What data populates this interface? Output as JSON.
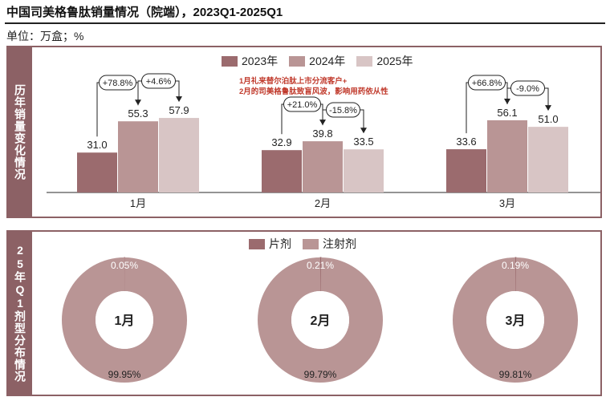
{
  "title": "中国司美格鲁肽销量情况（院端），2023Q1-2025Q1",
  "unit": "单位：万盒；%",
  "colors": {
    "c2023": "#9b6b6e",
    "c2024": "#b99595",
    "c2025": "#d8c5c5",
    "frame": "#8c6165",
    "note": "#c0392b",
    "donut_main": "#b99595",
    "donut_minor": "#9b6b6e"
  },
  "top_panel": {
    "side_label": "历年销量变化情况",
    "note_line1": "1月礼来替尔泊肽上市分流客户+",
    "note_line2": "2月的司美格鲁肽致盲风波，影响用药依从性"
  },
  "bottom_panel": {
    "side_label": "25年Q1剂型分布情况"
  },
  "chart_data": [
    {
      "type": "bar",
      "categories": [
        "1月",
        "2月",
        "3月"
      ],
      "series": [
        {
          "name": "2023年",
          "values": [
            31.0,
            32.9,
            33.6
          ],
          "color": "#9b6b6e"
        },
        {
          "name": "2024年",
          "values": [
            55.3,
            39.8,
            56.1
          ],
          "color": "#b99595"
        },
        {
          "name": "2025年",
          "values": [
            57.9,
            33.5,
            51.0
          ],
          "color": "#d8c5c5"
        }
      ],
      "value_labels": [
        [
          "31.0",
          "32.9",
          "33.6"
        ],
        [
          "55.3",
          "39.8",
          "56.1"
        ],
        [
          "57.9",
          "33.5",
          "51.0"
        ]
      ],
      "growth_2024_vs_2023": [
        "+78.8%",
        "+21.0%",
        "+66.8%"
      ],
      "growth_2025_vs_2024": [
        "+4.6%",
        "-15.8%",
        "-9.0%"
      ],
      "legend_position": "top-center",
      "ylim": [
        0,
        65
      ],
      "grid": false
    },
    {
      "type": "pie",
      "donut": true,
      "legend": [
        "片剂",
        "注射剂"
      ],
      "legend_colors": [
        "#9b6b6e",
        "#b99595"
      ],
      "charts": [
        {
          "center_label": "1月",
          "slices": [
            {
              "name": "片剂",
              "value": 0.05,
              "label": "0.05%"
            },
            {
              "name": "注射剂",
              "value": 99.95,
              "label": "99.95%"
            }
          ]
        },
        {
          "center_label": "2月",
          "slices": [
            {
              "name": "片剂",
              "value": 0.21,
              "label": "0.21%"
            },
            {
              "name": "注射剂",
              "value": 99.79,
              "label": "99.79%"
            }
          ]
        },
        {
          "center_label": "3月",
          "slices": [
            {
              "name": "片剂",
              "value": 0.19,
              "label": "0.19%"
            },
            {
              "name": "注射剂",
              "value": 99.81,
              "label": "99.81%"
            }
          ]
        }
      ]
    }
  ]
}
